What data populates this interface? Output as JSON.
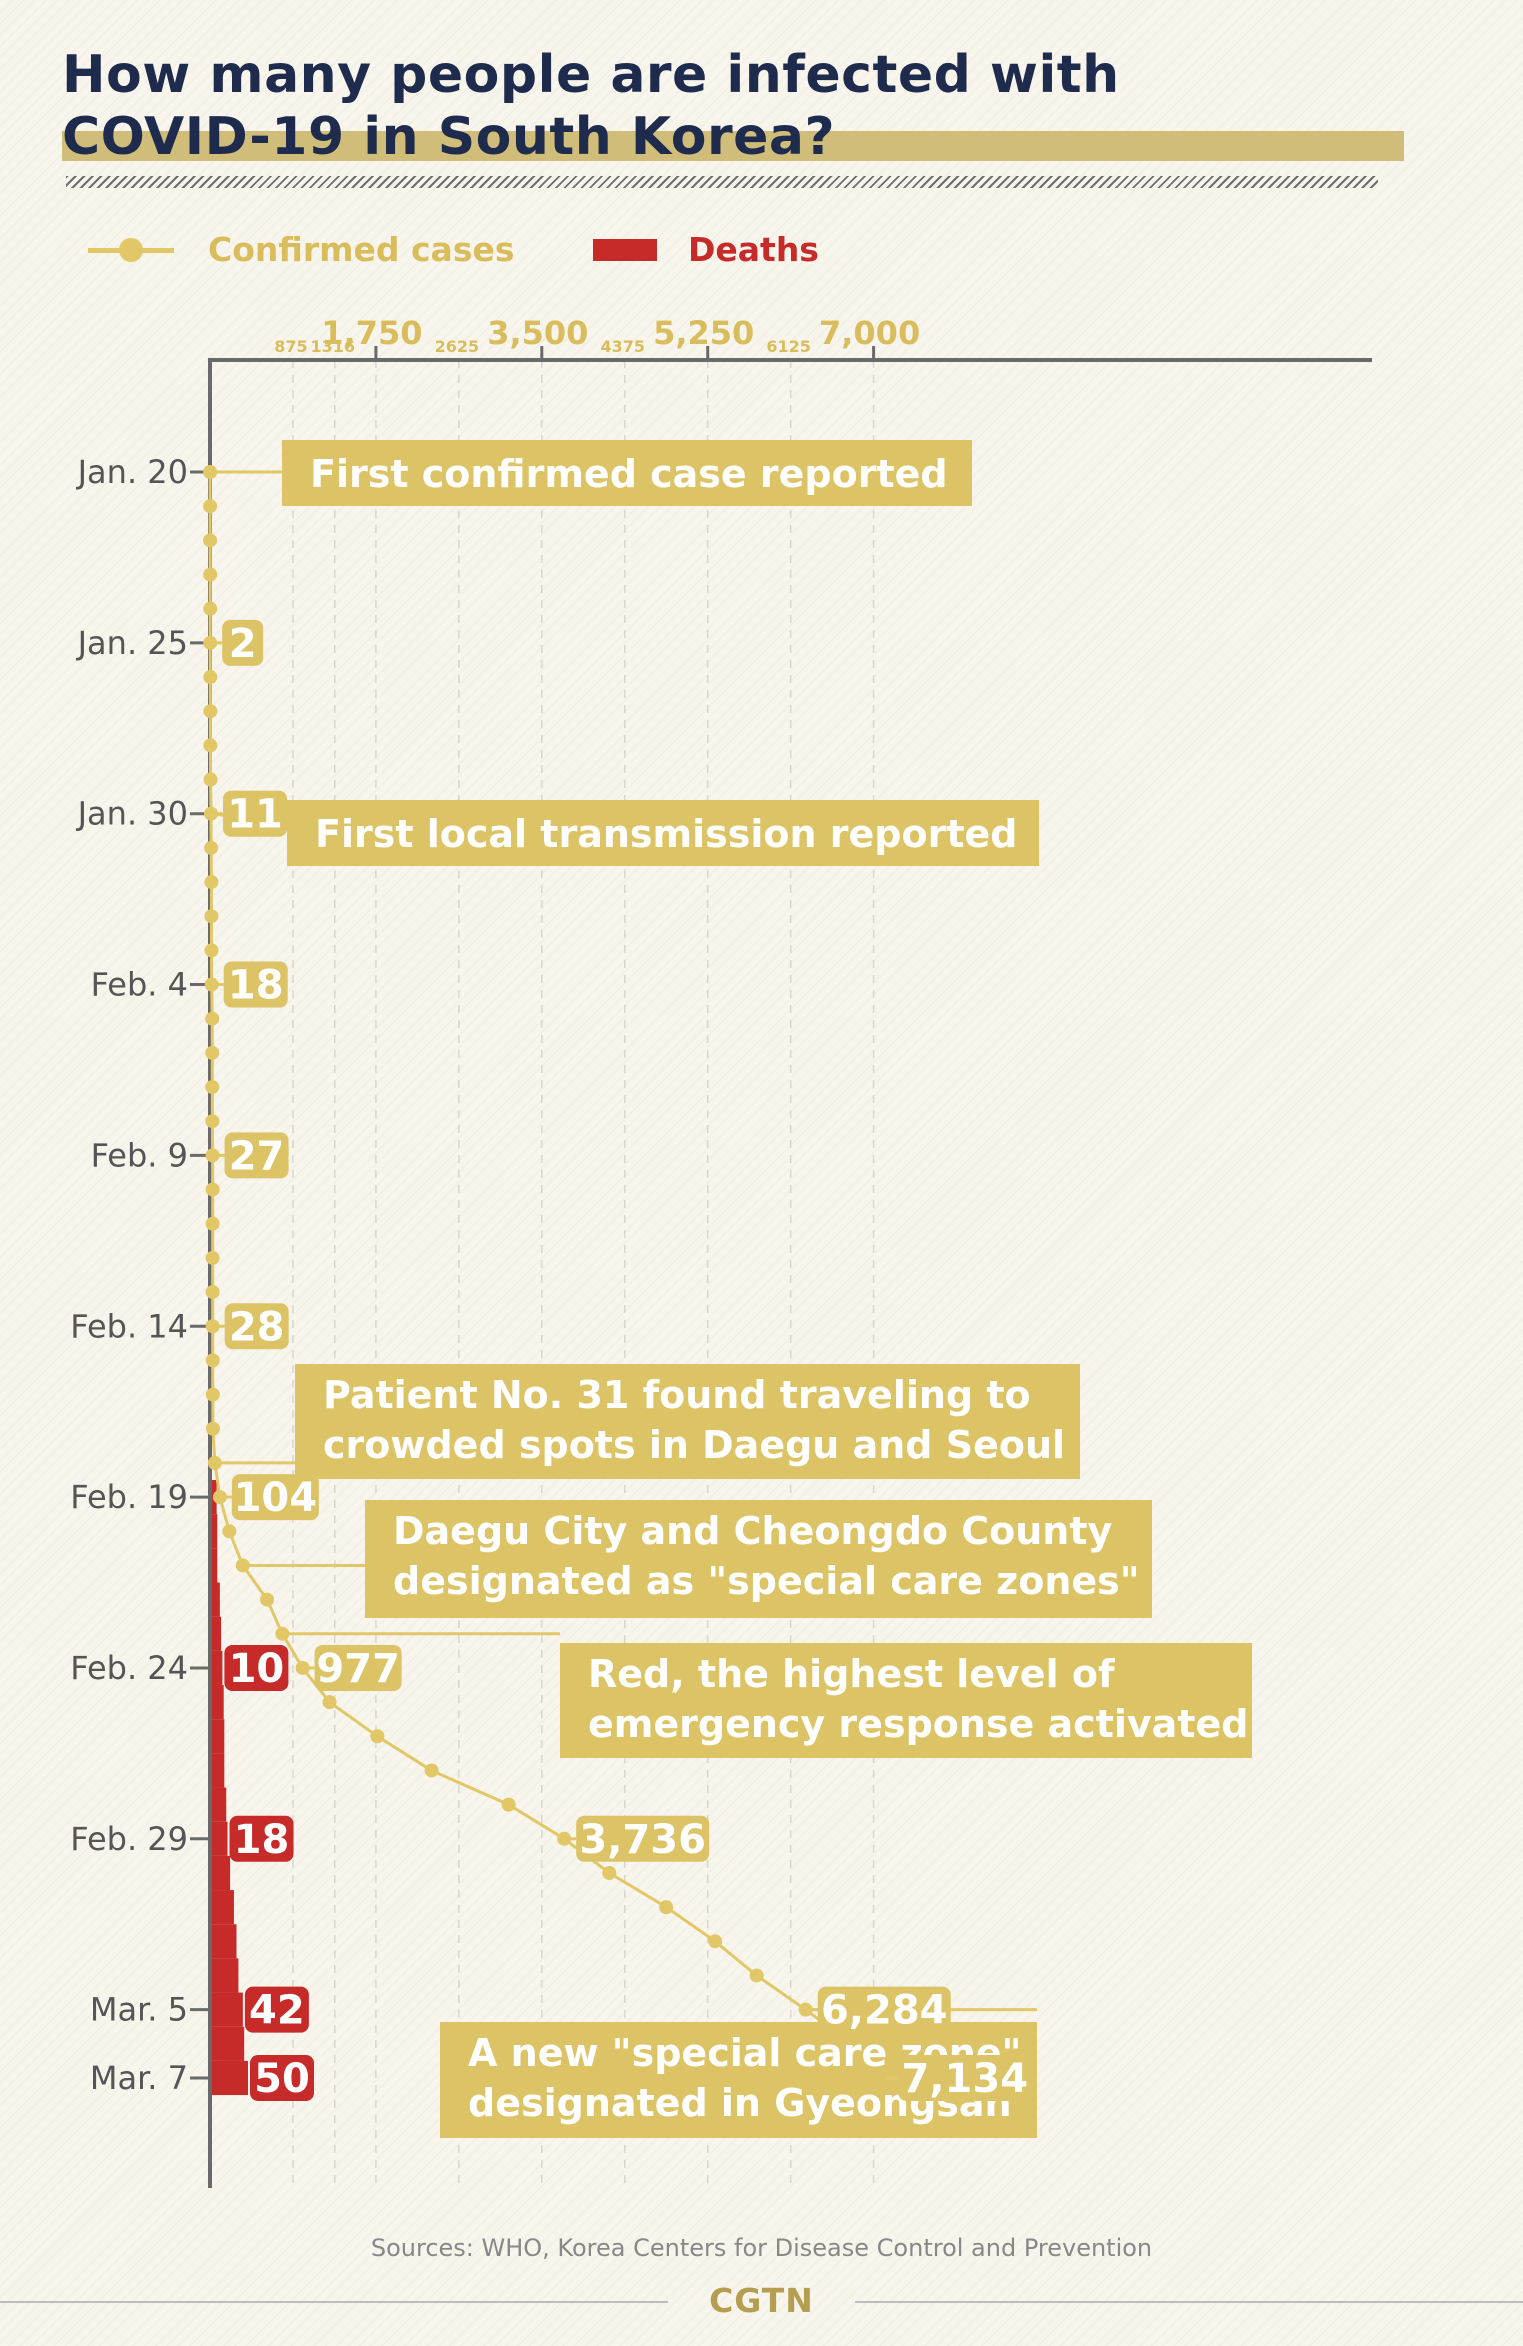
{
  "title": {
    "line1": "How many people are infected with",
    "line2": "COVID-19 in South Korea?"
  },
  "legend": [
    {
      "label": "Confirmed cases",
      "color": "#e2c766",
      "marker": "line-dot"
    },
    {
      "label": "Deaths",
      "color": "#c62a29",
      "marker": "bar"
    }
  ],
  "source": "Sources: WHO, Korea Centers for Disease Control and Prevention",
  "brand": "CGTN",
  "colors": {
    "gold": "#e2c766",
    "annotation_bg": "#dcc466",
    "red": "#c62a29",
    "axis": "#6a6a6a",
    "navy": "#1f2b4d"
  },
  "chart_data": {
    "type": "line",
    "orientation": "vertical-time-axis",
    "x_axis": {
      "position": "top",
      "range": [
        0,
        8400
      ],
      "major_ticks": [
        {
          "value": 1750,
          "label": "1,750"
        },
        {
          "value": 3500,
          "label": "3,500"
        },
        {
          "value": 5250,
          "label": "5,250"
        },
        {
          "value": 7000,
          "label": "7,000"
        }
      ],
      "minor_ticks": [
        {
          "value": 875,
          "label": "875"
        },
        {
          "value": 1316,
          "label": "1316"
        },
        {
          "value": 2625,
          "label": "2625"
        },
        {
          "value": 4375,
          "label": "4375"
        },
        {
          "value": 6125,
          "label": "6125"
        }
      ]
    },
    "y_axis": {
      "start": "Jan. 20",
      "end": "Mar. 7",
      "tick_labels": [
        {
          "day": 0,
          "label": "Jan. 20"
        },
        {
          "day": 5,
          "label": "Jan. 25"
        },
        {
          "day": 10,
          "label": "Jan. 30"
        },
        {
          "day": 15,
          "label": "Feb. 4"
        },
        {
          "day": 20,
          "label": "Feb. 9"
        },
        {
          "day": 25,
          "label": "Feb. 14"
        },
        {
          "day": 30,
          "label": "Feb. 19"
        },
        {
          "day": 35,
          "label": "Feb. 24"
        },
        {
          "day": 40,
          "label": "Feb. 29"
        },
        {
          "day": 45,
          "label": "Mar. 5"
        },
        {
          "day": 47,
          "label": "Mar. 7"
        }
      ]
    },
    "series": [
      {
        "name": "Confirmed cases",
        "points": [
          {
            "day": 0,
            "value": 1
          },
          {
            "day": 1,
            "value": 1
          },
          {
            "day": 2,
            "value": 1
          },
          {
            "day": 3,
            "value": 2
          },
          {
            "day": 4,
            "value": 2
          },
          {
            "day": 5,
            "value": 2
          },
          {
            "day": 6,
            "value": 3
          },
          {
            "day": 7,
            "value": 4
          },
          {
            "day": 8,
            "value": 4
          },
          {
            "day": 9,
            "value": 6
          },
          {
            "day": 10,
            "value": 11
          },
          {
            "day": 11,
            "value": 12
          },
          {
            "day": 12,
            "value": 15
          },
          {
            "day": 13,
            "value": 15
          },
          {
            "day": 14,
            "value": 16
          },
          {
            "day": 15,
            "value": 18
          },
          {
            "day": 16,
            "value": 23
          },
          {
            "day": 17,
            "value": 24
          },
          {
            "day": 18,
            "value": 24
          },
          {
            "day": 19,
            "value": 25
          },
          {
            "day": 20,
            "value": 27
          },
          {
            "day": 21,
            "value": 28
          },
          {
            "day": 22,
            "value": 28
          },
          {
            "day": 23,
            "value": 28
          },
          {
            "day": 24,
            "value": 28
          },
          {
            "day": 25,
            "value": 28
          },
          {
            "day": 26,
            "value": 29
          },
          {
            "day": 27,
            "value": 30
          },
          {
            "day": 28,
            "value": 31
          },
          {
            "day": 29,
            "value": 51
          },
          {
            "day": 30,
            "value": 104
          },
          {
            "day": 31,
            "value": 204
          },
          {
            "day": 32,
            "value": 346
          },
          {
            "day": 33,
            "value": 602
          },
          {
            "day": 34,
            "value": 763
          },
          {
            "day": 35,
            "value": 977
          },
          {
            "day": 36,
            "value": 1261
          },
          {
            "day": 37,
            "value": 1766
          },
          {
            "day": 38,
            "value": 2337
          },
          {
            "day": 39,
            "value": 3150
          },
          {
            "day": 40,
            "value": 3736
          },
          {
            "day": 41,
            "value": 4212
          },
          {
            "day": 42,
            "value": 4812
          },
          {
            "day": 43,
            "value": 5328
          },
          {
            "day": 44,
            "value": 5766
          },
          {
            "day": 45,
            "value": 6284
          },
          {
            "day": 46,
            "value": 6767
          },
          {
            "day": 47,
            "value": 7134
          }
        ]
      },
      {
        "name": "Deaths",
        "points": [
          {
            "day": 30,
            "value": 1
          },
          {
            "day": 31,
            "value": 2
          },
          {
            "day": 32,
            "value": 2
          },
          {
            "day": 33,
            "value": 6
          },
          {
            "day": 34,
            "value": 8
          },
          {
            "day": 35,
            "value": 10
          },
          {
            "day": 36,
            "value": 12
          },
          {
            "day": 37,
            "value": 13
          },
          {
            "day": 38,
            "value": 13
          },
          {
            "day": 39,
            "value": 16
          },
          {
            "day": 40,
            "value": 18
          },
          {
            "day": 41,
            "value": 22
          },
          {
            "day": 42,
            "value": 28
          },
          {
            "day": 43,
            "value": 32
          },
          {
            "day": 44,
            "value": 35
          },
          {
            "day": 45,
            "value": 42
          },
          {
            "day": 46,
            "value": 44
          },
          {
            "day": 47,
            "value": 50
          }
        ]
      }
    ],
    "data_labels": [
      {
        "series": "Confirmed cases",
        "day": 5,
        "value": 2,
        "label": "2"
      },
      {
        "series": "Confirmed cases",
        "day": 10,
        "value": 11,
        "label": "11"
      },
      {
        "series": "Confirmed cases",
        "day": 15,
        "value": 18,
        "label": "18"
      },
      {
        "series": "Confirmed cases",
        "day": 20,
        "value": 27,
        "label": "27"
      },
      {
        "series": "Confirmed cases",
        "day": 25,
        "value": 28,
        "label": "28"
      },
      {
        "series": "Confirmed cases",
        "day": 30,
        "value": 104,
        "label": "104"
      },
      {
        "series": "Confirmed cases",
        "day": 35,
        "value": 977,
        "label": "977"
      },
      {
        "series": "Confirmed cases",
        "day": 40,
        "value": 3736,
        "label": "3,736"
      },
      {
        "series": "Confirmed cases",
        "day": 45,
        "value": 6284,
        "label": "6,284"
      },
      {
        "series": "Confirmed cases",
        "day": 47,
        "value": 7134,
        "label": "7,134"
      },
      {
        "series": "Deaths",
        "day": 35,
        "value": 10,
        "label": "10"
      },
      {
        "series": "Deaths",
        "day": 40,
        "value": 18,
        "label": "18"
      },
      {
        "series": "Deaths",
        "day": 45,
        "value": 42,
        "label": "42"
      },
      {
        "series": "Deaths",
        "day": 47,
        "value": 50,
        "label": "50"
      }
    ],
    "annotations": [
      {
        "day": 0,
        "lines": [
          "First confirmed case reported"
        ]
      },
      {
        "day": 10,
        "lines": [
          "First local transmission reported"
        ]
      },
      {
        "day": 29,
        "lines": [
          "Patient No. 31 found traveling to",
          "crowded spots in Daegu and Seoul"
        ]
      },
      {
        "day": 32,
        "lines": [
          "Daegu City and Cheongdo County",
          "designated as \"special care zones\""
        ]
      },
      {
        "day": 34,
        "lines": [
          "Red, the highest level of",
          "emergency response activated"
        ]
      },
      {
        "day": 45,
        "lines": [
          "A new \"special care zone\"",
          "designated in Gyeongsan"
        ]
      }
    ]
  }
}
